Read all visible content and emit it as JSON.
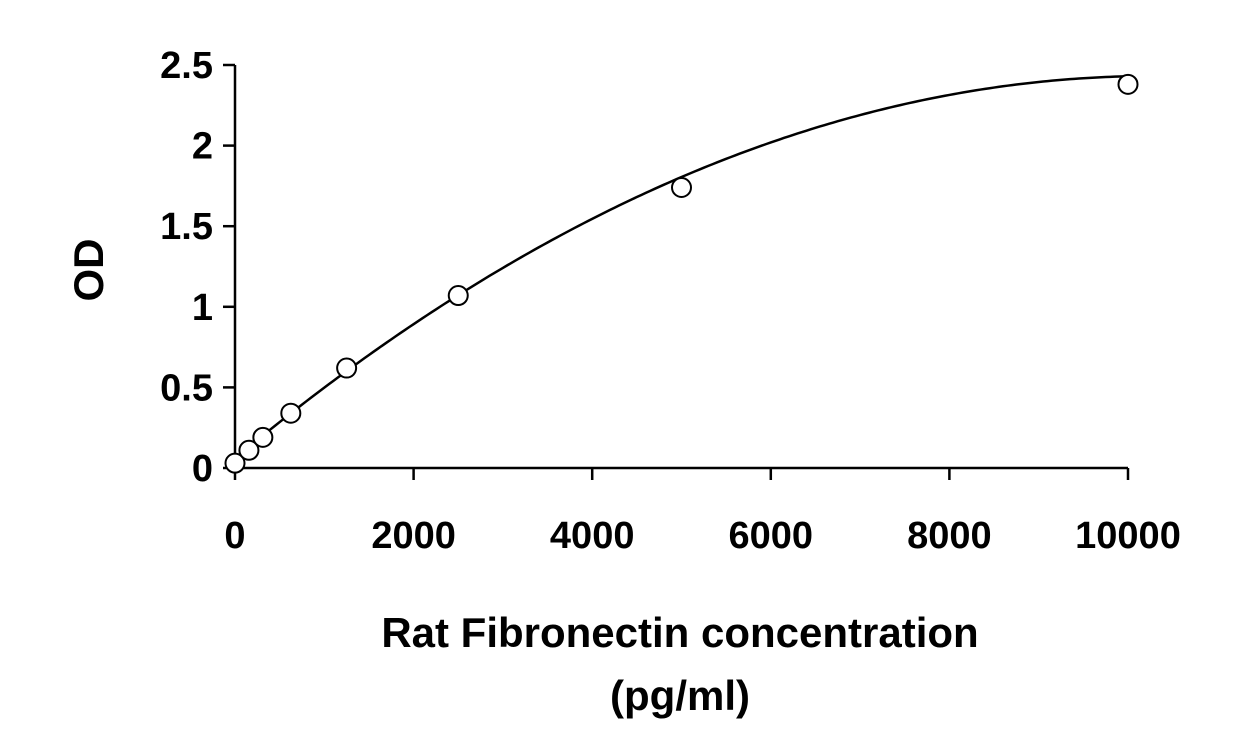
{
  "chart_data": {
    "type": "scatter",
    "title": "",
    "xlabel_line1": "Rat Fibronectin concentration",
    "xlabel_line2": "(pg/ml)",
    "ylabel": "OD",
    "xlim": [
      0,
      10000
    ],
    "ylim": [
      0,
      2.5
    ],
    "xticks": [
      0,
      2000,
      4000,
      6000,
      8000,
      10000
    ],
    "yticks": [
      0,
      0.5,
      1,
      1.5,
      2,
      2.5
    ],
    "xtick_labels": [
      "0",
      "2000",
      "4000",
      "6000",
      "8000",
      "10000"
    ],
    "ytick_labels": [
      "0",
      "0.5",
      "1",
      "1.5",
      "2",
      "2.5"
    ],
    "grid": false,
    "legend": false,
    "points": {
      "x": [
        0,
        156,
        312,
        625,
        1250,
        2500,
        5000,
        10000
      ],
      "y": [
        0.03,
        0.11,
        0.19,
        0.34,
        0.62,
        1.07,
        1.74,
        2.38
      ]
    },
    "fit_curve": {
      "type": "polynomial",
      "coefficients": [
        0.06,
        0.000461,
        -2.24e-08
      ]
    },
    "colors": {
      "line": "#000000",
      "marker_stroke": "#000000",
      "marker_fill": "#ffffff"
    }
  }
}
